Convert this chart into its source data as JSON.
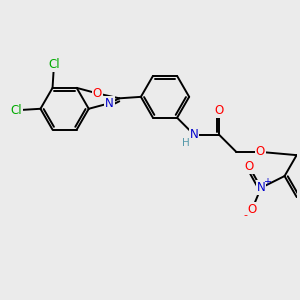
{
  "bg_color": "#ebebeb",
  "bond_color": "#000000",
  "bond_width": 1.4,
  "atom_colors": {
    "C": "#000000",
    "N": "#0000cc",
    "O": "#ff0000",
    "Cl": "#00aa00",
    "H": "#5599aa"
  },
  "xlim": [
    0,
    10
  ],
  "ylim": [
    0,
    10
  ]
}
